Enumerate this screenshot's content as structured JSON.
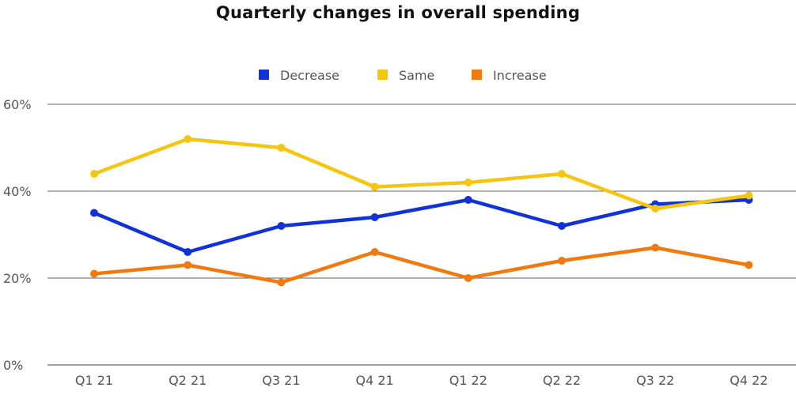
{
  "chart_data": {
    "type": "line",
    "title": "Quarterly changes in overall spending",
    "xlabel": "",
    "ylabel": "",
    "categories": [
      "Q1 21",
      "Q2 21",
      "Q3 21",
      "Q4 21",
      "Q1 22",
      "Q2 22",
      "Q3 22",
      "Q4 22"
    ],
    "ylim": [
      0,
      60
    ],
    "yticks": [
      0,
      20,
      40,
      60
    ],
    "ytick_labels": [
      "0%",
      "20%",
      "40%",
      "60%"
    ],
    "grid": "horizontal",
    "legend_position": "top-center",
    "series": [
      {
        "name": "Decrease",
        "color": "#1132d6",
        "values": [
          35,
          26,
          32,
          34,
          38,
          32,
          37,
          38
        ]
      },
      {
        "name": "Same",
        "color": "#f5c60f",
        "values": [
          44,
          52,
          50,
          41,
          42,
          44,
          36,
          39
        ]
      },
      {
        "name": "Increase",
        "color": "#f07a10",
        "values": [
          21,
          23,
          19,
          26,
          20,
          24,
          27,
          23
        ]
      }
    ]
  }
}
